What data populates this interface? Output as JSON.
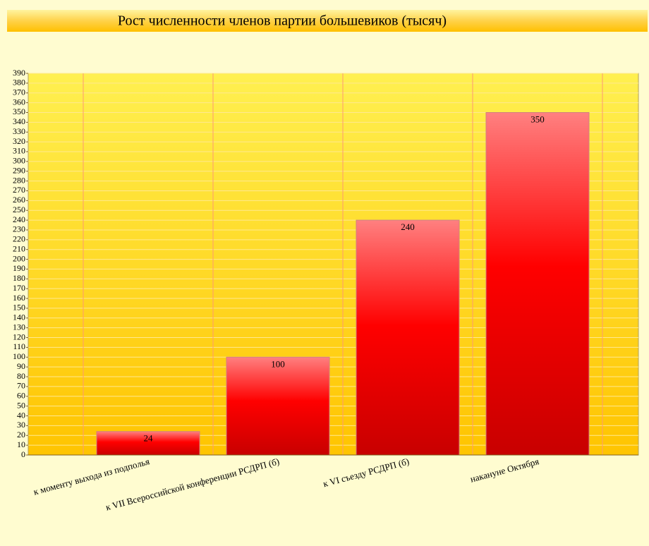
{
  "chart_data": {
    "type": "bar",
    "title": "Рост численности членов партии большевиков (тысяч)",
    "categories": [
      "к моменту выхода из подполья",
      "к VII Всероссийской конференции РСДРП (б)",
      "к VI съезду РСДРП (б)",
      "накануне Октября"
    ],
    "values": [
      24,
      100,
      240,
      350
    ],
    "color": "#ff0000",
    "ylim": [
      0,
      390
    ],
    "yticks": [
      0,
      10,
      20,
      30,
      40,
      50,
      60,
      70,
      80,
      90,
      100,
      110,
      120,
      130,
      140,
      150,
      160,
      170,
      180,
      190,
      200,
      210,
      220,
      230,
      240,
      250,
      260,
      270,
      280,
      290,
      300,
      310,
      320,
      330,
      340,
      350,
      360,
      370,
      380,
      390
    ],
    "grid": true
  }
}
